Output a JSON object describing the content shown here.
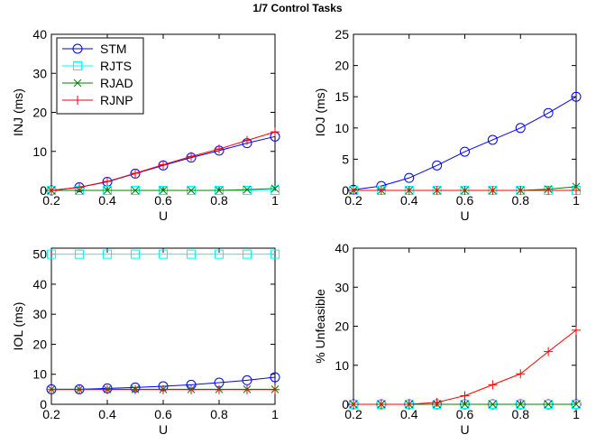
{
  "figure_title": "1/7 Control Tasks",
  "chart_data": [
    {
      "type": "line",
      "xlabel": "U",
      "ylabel": "INJ (ms)",
      "xlim": [
        0.2,
        1
      ],
      "ylim": [
        0,
        40
      ],
      "xticks": [
        "0.2",
        "0.4",
        "0.6",
        "0.8",
        "1"
      ],
      "yticks": [
        "0",
        "10",
        "20",
        "30",
        "40"
      ],
      "x": [
        0.2,
        0.3,
        0.4,
        0.5,
        0.6,
        0.7,
        0.8,
        0.9,
        1.0
      ],
      "legend_position": "top-left",
      "series": [
        {
          "name": "STM",
          "color": "#0000ff",
          "marker": "circle",
          "values": [
            0,
            0.8,
            2.2,
            4.3,
            6.4,
            8.4,
            10.2,
            12.1,
            13.8
          ]
        },
        {
          "name": "RJTS",
          "color": "#00ffff",
          "marker": "square",
          "values": [
            0,
            0,
            0,
            0,
            0,
            0,
            0,
            0,
            0
          ]
        },
        {
          "name": "RJAD",
          "color": "#008000",
          "marker": "x",
          "values": [
            0,
            0,
            0,
            0,
            0,
            0,
            0,
            0.2,
            0.5
          ]
        },
        {
          "name": "RJNP",
          "color": "#ff0000",
          "marker": "plus",
          "values": [
            0,
            0.8,
            2.3,
            4.4,
            6.6,
            8.7,
            10.6,
            12.8,
            15.0
          ]
        }
      ]
    },
    {
      "type": "line",
      "xlabel": "U",
      "ylabel": "IOJ (ms)",
      "xlim": [
        0.2,
        1
      ],
      "ylim": [
        0,
        25
      ],
      "xticks": [
        "0.2",
        "0.4",
        "0.6",
        "0.8",
        "1"
      ],
      "yticks": [
        "0",
        "5",
        "10",
        "15",
        "20",
        "25"
      ],
      "x": [
        0.2,
        0.3,
        0.4,
        0.5,
        0.6,
        0.7,
        0.8,
        0.9,
        1.0
      ],
      "series": [
        {
          "name": "STM",
          "color": "#0000ff",
          "marker": "circle",
          "values": [
            0.1,
            0.7,
            2.0,
            4.0,
            6.2,
            8.1,
            10.0,
            12.4,
            15.0
          ]
        },
        {
          "name": "RJTS",
          "color": "#00ffff",
          "marker": "square",
          "values": [
            0,
            0,
            0,
            0,
            0,
            0,
            0,
            0,
            0
          ]
        },
        {
          "name": "RJAD",
          "color": "#008000",
          "marker": "x",
          "values": [
            0,
            0,
            0,
            0,
            0,
            0,
            0,
            0.2,
            0.6
          ]
        },
        {
          "name": "RJNP",
          "color": "#ff0000",
          "marker": "plus",
          "values": [
            0,
            0,
            0,
            0,
            0,
            0,
            0,
            0,
            0
          ]
        }
      ]
    },
    {
      "type": "line",
      "xlabel": "U",
      "ylabel": "IOL (ms)",
      "xlim": [
        0.2,
        1
      ],
      "ylim": [
        0,
        52
      ],
      "xticks": [
        "0.2",
        "0.4",
        "0.6",
        "0.8",
        "1"
      ],
      "yticks": [
        "0",
        "10",
        "20",
        "30",
        "40",
        "50"
      ],
      "x": [
        0.2,
        0.3,
        0.4,
        0.5,
        0.6,
        0.7,
        0.8,
        0.9,
        1.0
      ],
      "series": [
        {
          "name": "STM",
          "color": "#0000ff",
          "marker": "circle",
          "values": [
            5.0,
            5.0,
            5.3,
            5.6,
            6.0,
            6.5,
            7.2,
            8.0,
            9.0
          ]
        },
        {
          "name": "RJTS",
          "color": "#00ffff",
          "marker": "square",
          "values": [
            50,
            50,
            50,
            50,
            50,
            50,
            50,
            50,
            50
          ]
        },
        {
          "name": "RJAD",
          "color": "#008000",
          "marker": "x",
          "values": [
            5,
            5,
            5,
            5,
            5,
            5,
            5,
            5,
            5
          ]
        },
        {
          "name": "RJNP",
          "color": "#ff0000",
          "marker": "plus",
          "values": [
            4.9,
            4.9,
            4.9,
            4.9,
            4.9,
            4.9,
            4.9,
            4.9,
            4.9
          ]
        }
      ]
    },
    {
      "type": "line",
      "xlabel": "U",
      "ylabel": "% Unfeasible",
      "xlim": [
        0.2,
        1
      ],
      "ylim": [
        0,
        40
      ],
      "xticks": [
        "0.2",
        "0.4",
        "0.6",
        "0.8",
        "1"
      ],
      "yticks": [
        "0",
        "10",
        "20",
        "30",
        "40"
      ],
      "x": [
        0.2,
        0.3,
        0.4,
        0.5,
        0.6,
        0.7,
        0.8,
        0.9,
        1.0
      ],
      "series": [
        {
          "name": "STM",
          "color": "#0000ff",
          "marker": "circle",
          "values": [
            0,
            0,
            0,
            0,
            0,
            0,
            0,
            0,
            0
          ]
        },
        {
          "name": "RJTS",
          "color": "#00ffff",
          "marker": "square",
          "values": [
            0,
            0,
            0,
            0,
            0,
            0,
            0,
            0,
            0
          ]
        },
        {
          "name": "RJAD",
          "color": "#008000",
          "marker": "x",
          "values": [
            0,
            0,
            0,
            0,
            0,
            0,
            0,
            0,
            0
          ]
        },
        {
          "name": "RJNP",
          "color": "#ff0000",
          "marker": "plus",
          "values": [
            0,
            0,
            0,
            0.5,
            2.2,
            5.0,
            7.8,
            13.5,
            19.0
          ]
        }
      ]
    }
  ]
}
